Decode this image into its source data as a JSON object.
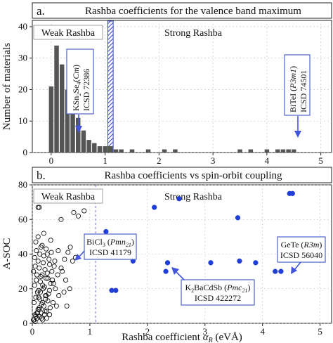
{
  "chart_data": [
    {
      "type": "bar",
      "panel_label": "a.",
      "title": "Rashba coefficients for the valence band maximum",
      "xlabel": "",
      "ylabel": "Number of materials",
      "xlim": [
        -0.35,
        5.2
      ],
      "ylim": [
        0,
        42
      ],
      "xticks": [
        0,
        1,
        2,
        3,
        4,
        5
      ],
      "yticks": [
        0,
        10,
        20,
        30,
        40
      ],
      "bin_width": 0.1,
      "bins_start": [
        -0.05,
        0.05,
        0.15,
        0.25,
        0.35,
        0.45,
        0.55,
        0.65,
        0.75,
        0.85,
        0.95,
        1.05,
        1.15,
        1.25,
        1.35,
        1.45,
        1.55,
        1.65,
        1.75,
        1.85,
        1.95,
        2.05,
        2.15,
        2.25,
        2.35,
        2.45,
        2.55,
        2.65,
        2.75,
        2.85,
        2.95,
        3.05,
        3.15,
        3.25,
        3.35,
        3.45,
        3.55,
        3.65,
        3.75,
        3.85,
        3.95,
        4.05,
        4.15,
        4.25,
        4.35,
        4.45
      ],
      "counts": [
        21,
        34,
        28,
        20,
        16,
        11,
        7,
        4,
        3,
        2,
        2,
        2,
        1,
        1,
        0,
        1,
        0,
        0,
        1,
        0,
        0,
        1,
        0,
        1,
        0,
        0,
        0,
        0,
        0,
        0,
        0,
        0,
        0,
        0,
        0,
        1,
        0,
        1,
        0,
        0,
        1,
        0,
        1,
        1,
        1,
        1
      ],
      "region_labels": [
        "Weak Rashba",
        "Strong Rashba"
      ],
      "threshold_band": [
        1.05,
        1.15
      ],
      "annotations": [
        {
          "text": "KSn2Se4(Cm)",
          "formula": "KSn",
          "sub1": "2",
          "mid": "Se",
          "sub2": "4",
          "space_group": "Cm",
          "icsd": "ICSD 72386",
          "arrow_x": 0.5,
          "arrow_y": 2.5
        },
        {
          "text": "BiTeI (P3m1)",
          "formula": "BiTeI",
          "space_group": "P3m1",
          "icsd": "ICSD 74501",
          "arrow_x": 4.5,
          "arrow_y": 2.5
        }
      ],
      "bar_color": "#555555",
      "band_color": "#3b4bbf",
      "arrow_color": "#4455dd"
    },
    {
      "type": "scatter",
      "panel_label": "b.",
      "title": "Rashba coefficients vs spin-orbit coupling",
      "xlabel": "Rashba coefficient αR (eVÅ)",
      "xlabel_pre": "Rashba coefficient ",
      "xlabel_alpha": "α",
      "xlabel_sub": "R",
      "xlabel_post": " (eVÅ)",
      "ylabel": "A-SOC",
      "xlim": [
        0,
        5.2
      ],
      "ylim": [
        0,
        80
      ],
      "xticks": [
        0,
        1,
        2,
        3,
        4,
        5
      ],
      "yticks": [
        0,
        20,
        40,
        60,
        80
      ],
      "region_labels": [
        "Weak Rashba",
        "Strong Rashba"
      ],
      "threshold_x": 1.1,
      "series": [
        {
          "marker": "open-circle",
          "x": [
            0.02,
            0.05,
            0.08,
            0.1,
            0.12,
            0.15,
            0.18,
            0.2,
            0.22,
            0.25,
            0.3,
            0.03,
            0.06,
            0.09,
            0.13,
            0.16,
            0.19,
            0.23,
            0.27,
            0.04,
            0.07,
            0.11,
            0.14,
            0.17,
            0.21,
            0.24,
            0.28,
            0.32,
            0.02,
            0.05,
            0.08,
            0.12,
            0.15,
            0.19,
            0.22,
            0.26,
            0.3,
            0.35,
            0.04,
            0.07,
            0.1,
            0.13,
            0.17,
            0.2,
            0.24,
            0.29,
            0.33,
            0.38,
            0.03,
            0.06,
            0.09,
            0.12,
            0.16,
            0.21,
            0.25,
            0.31,
            0.36,
            0.42,
            0.05,
            0.08,
            0.11,
            0.14,
            0.18,
            0.23,
            0.27,
            0.34,
            0.4,
            0.46,
            0.06,
            0.1,
            0.15,
            0.2,
            0.26,
            0.32,
            0.39,
            0.45,
            0.52,
            0.58,
            0.08,
            0.12,
            0.18,
            0.24,
            0.3,
            0.37,
            0.44,
            0.5,
            0.56,
            0.62,
            0.66,
            0.7,
            0.72,
            0.8,
            0.9,
            0.55,
            0.6,
            0.75,
            0.65,
            0.5,
            0.1,
            0.12
          ],
          "y": [
            2,
            5,
            3,
            8,
            4,
            6,
            2,
            10,
            7,
            3,
            5,
            12,
            15,
            18,
            14,
            11,
            20,
            16,
            13,
            22,
            25,
            19,
            24,
            28,
            21,
            26,
            17,
            23,
            30,
            33,
            28,
            32,
            27,
            35,
            31,
            29,
            34,
            25,
            38,
            42,
            36,
            40,
            45,
            39,
            43,
            37,
            41,
            33,
            2,
            4,
            6,
            8,
            3,
            5,
            7,
            9,
            12,
            10,
            1,
            3,
            15,
            18,
            22,
            14,
            26,
            30,
            20,
            16,
            47,
            50,
            44,
            52,
            40,
            48,
            36,
            42,
            30,
            25,
            6,
            9,
            12,
            16,
            19,
            23,
            28,
            32,
            37,
            41,
            44,
            36,
            64,
            62,
            65,
            18,
            10,
            38,
            20,
            60,
            67,
            67
          ]
        },
        {
          "marker": "filled-circle",
          "x": [
            1.28,
            1.38,
            1.45,
            1.75,
            2.12,
            2.32,
            2.35,
            2.55,
            3.1,
            3.57,
            3.6,
            3.88,
            4.22,
            4.32,
            4.47,
            4.52
          ],
          "y": [
            53,
            19,
            19,
            36,
            67,
            30,
            35,
            72,
            35,
            61,
            36,
            35,
            30,
            30,
            75,
            75
          ]
        }
      ],
      "annotations": [
        {
          "text": "BiCl3 (Pmn21)",
          "formula": "BiCl",
          "sub1": "3",
          "space_group": "Pmn",
          "sg_sub": "21",
          "icsd": "ICSD 41179",
          "arrow_x": 0.75,
          "arrow_y": 36
        },
        {
          "text": "K2BaCdSb (Pmc21)",
          "formula": "K",
          "sub1": "2",
          "mid": "BaCdSb",
          "space_group": "Pmc",
          "sg_sub": "21",
          "icsd": "ICSD 422272",
          "arrow_x": 2.38,
          "arrow_y": 29
        },
        {
          "text": "GeTe (R3m)",
          "formula": "GeTe",
          "space_group": "R3m",
          "icsd": "ICSD 56040",
          "arrow_x": 4.3,
          "arrow_y": 30
        }
      ],
      "filled_color": "#1f3fd8",
      "box_border_color": "#4f63c9"
    }
  ]
}
